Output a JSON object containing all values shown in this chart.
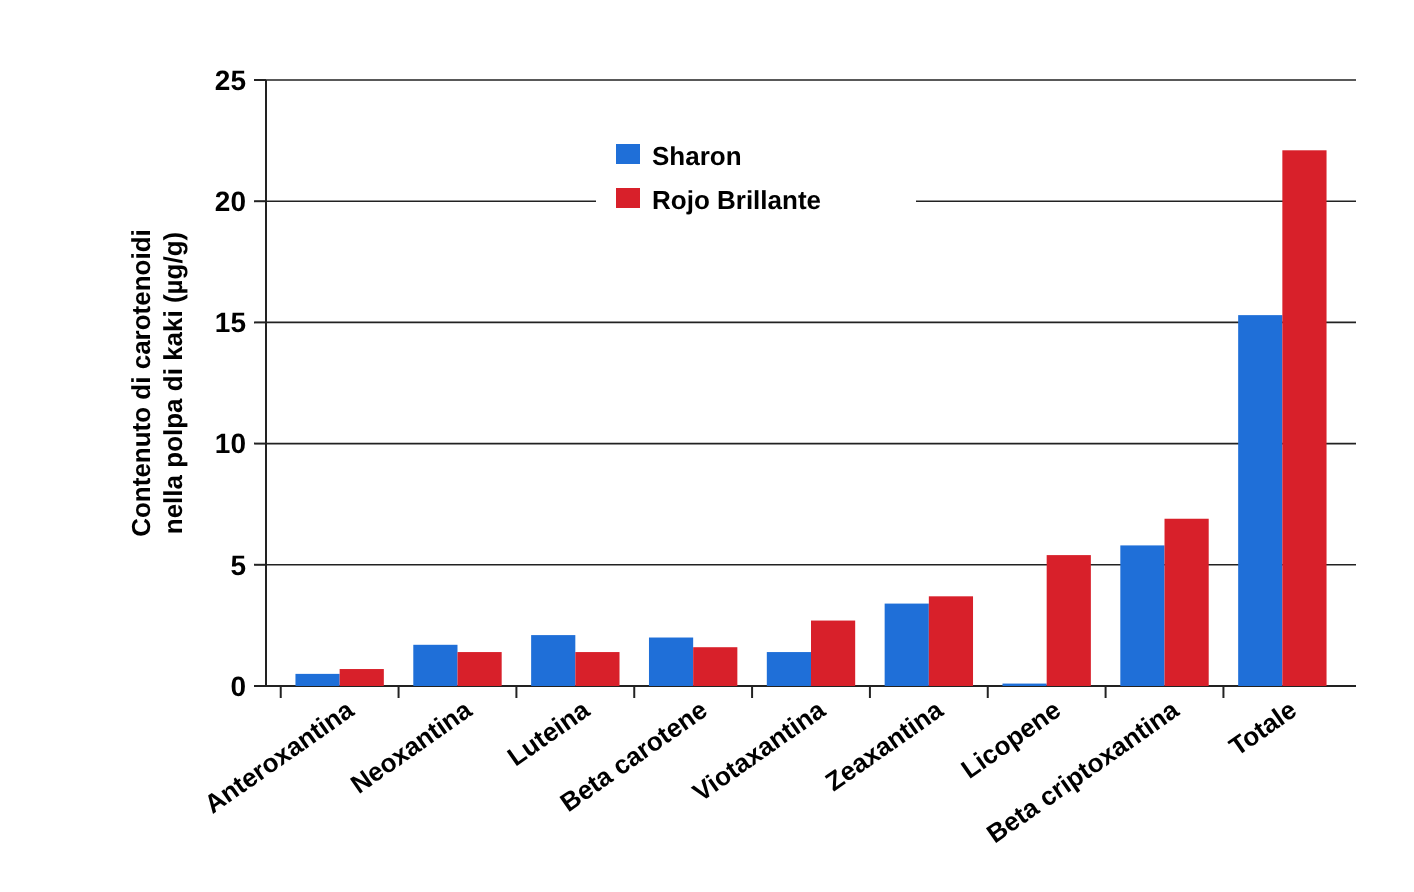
{
  "chart_data": {
    "type": "bar",
    "ylabel": "Contenuto di carotenoidi nella polpa di kaki (µg/g)",
    "categories": [
      "Anteroxantina",
      "Neoxantina",
      "Luteina",
      "Beta carotene",
      "Viotaxantina",
      "Zeaxantina",
      "Licopene",
      "Beta criptoxantina",
      "Totale"
    ],
    "series": [
      {
        "name": "Sharon",
        "color": "#1f6fd8",
        "values": [
          0.5,
          1.7,
          2.1,
          2.0,
          1.4,
          3.4,
          0.1,
          5.8,
          15.3
        ]
      },
      {
        "name": "Rojo Brillante",
        "color": "#d8202a",
        "values": [
          0.7,
          1.4,
          1.4,
          1.6,
          2.7,
          3.7,
          5.4,
          6.9,
          22.1
        ]
      }
    ],
    "ylim": [
      0,
      25
    ],
    "yticks": [
      0,
      5,
      10,
      15,
      20,
      25
    ],
    "grid": "y",
    "legend": "top"
  }
}
